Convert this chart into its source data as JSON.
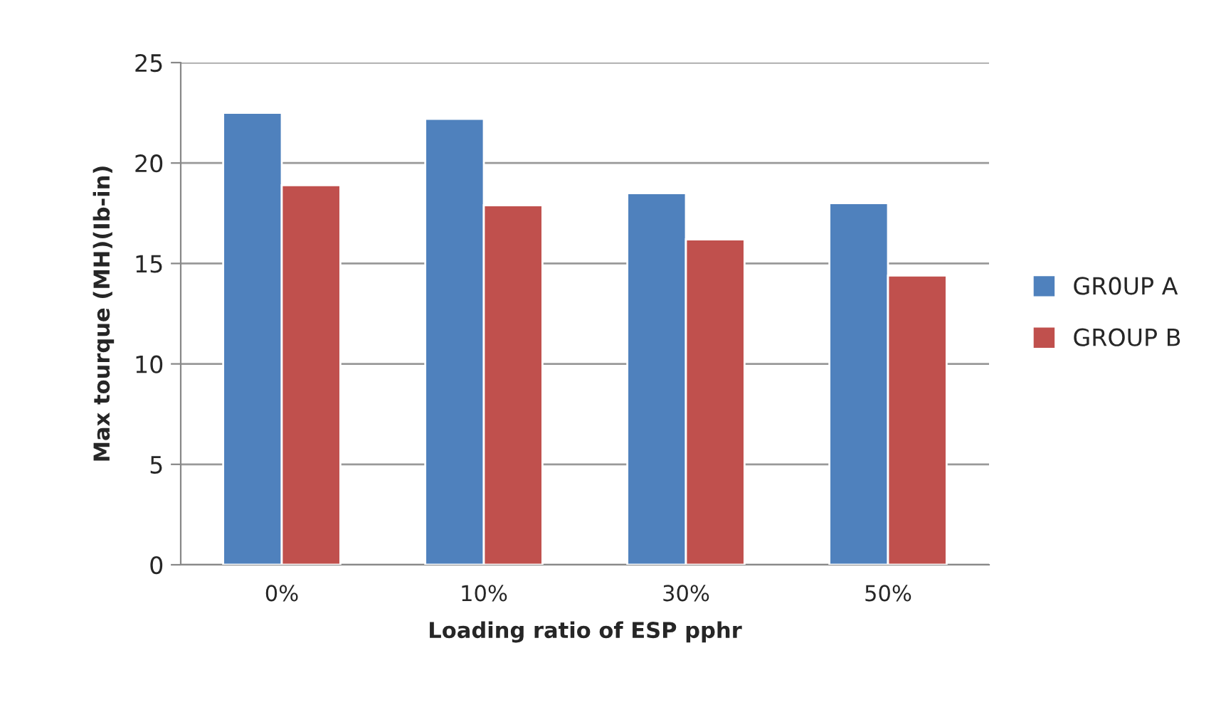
{
  "chart_data": {
    "type": "bar",
    "xlabel": "Loading ratio of ESP pphr",
    "ylabel": "Max tourque (MH)(Ib-in)",
    "categories": [
      "0%",
      "10%",
      "30%",
      "50%"
    ],
    "series": [
      {
        "name": "GR0UP A",
        "color": "#4f81bd",
        "values": [
          22.5,
          22.2,
          18.5,
          18.0
        ]
      },
      {
        "name": "GROUP B",
        "color": "#c0504d",
        "values": [
          18.9,
          17.9,
          16.2,
          14.4
        ]
      }
    ],
    "ylim": [
      0,
      25
    ],
    "yticks": [
      0,
      5,
      10,
      15,
      20,
      25
    ],
    "grid": "y",
    "legend": "right"
  }
}
